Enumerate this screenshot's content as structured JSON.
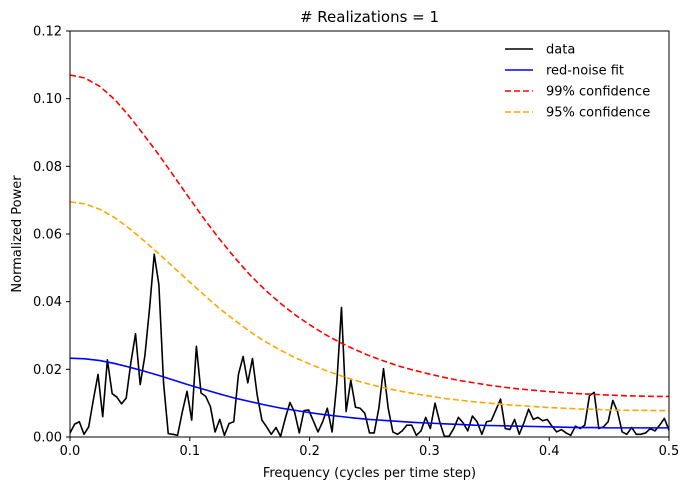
{
  "chart_data": {
    "type": "line",
    "title": "# Realizations = 1",
    "xlabel": "Frequency (cycles per time step)",
    "ylabel": "Normalized Power",
    "xlim": [
      0.0,
      0.5
    ],
    "ylim": [
      0.0,
      0.12
    ],
    "x_ticks": [
      "0.0",
      "0.1",
      "0.2",
      "0.3",
      "0.4",
      "0.5"
    ],
    "y_ticks": [
      "0.00",
      "0.02",
      "0.04",
      "0.06",
      "0.08",
      "0.10",
      "0.12"
    ],
    "x_tick_values": [
      0.0,
      0.1,
      0.2,
      0.3,
      0.4,
      0.5
    ],
    "y_tick_values": [
      0.0,
      0.02,
      0.04,
      0.06,
      0.08,
      0.1,
      0.12
    ],
    "grid": false,
    "legend_position": "top-right",
    "series": [
      {
        "name": "data",
        "color": "#000000",
        "style": "solid",
        "x": [
          0.0,
          0.0039,
          0.0078,
          0.0117,
          0.0156,
          0.0195,
          0.0234,
          0.0273,
          0.0312,
          0.0352,
          0.0391,
          0.043,
          0.0469,
          0.0508,
          0.0547,
          0.0586,
          0.0625,
          0.0664,
          0.0703,
          0.0742,
          0.0781,
          0.082,
          0.0859,
          0.0898,
          0.0938,
          0.0977,
          0.1016,
          0.1055,
          0.1094,
          0.1133,
          0.1172,
          0.1211,
          0.125,
          0.1289,
          0.1328,
          0.1367,
          0.1406,
          0.1445,
          0.1484,
          0.1523,
          0.1562,
          0.1602,
          0.1641,
          0.168,
          0.1719,
          0.1758,
          0.1797,
          0.1836,
          0.1875,
          0.1914,
          0.1953,
          0.1992,
          0.2031,
          0.207,
          0.2109,
          0.2148,
          0.2188,
          0.2227,
          0.2266,
          0.2305,
          0.2344,
          0.2383,
          0.2422,
          0.2461,
          0.25,
          0.2539,
          0.2578,
          0.2617,
          0.2656,
          0.2695,
          0.2734,
          0.2773,
          0.2812,
          0.2852,
          0.2891,
          0.293,
          0.2969,
          0.3008,
          0.3047,
          0.3086,
          0.3125,
          0.3164,
          0.3203,
          0.3242,
          0.3281,
          0.332,
          0.3359,
          0.3398,
          0.3438,
          0.3477,
          0.3516,
          0.3555,
          0.3594,
          0.3633,
          0.3672,
          0.3711,
          0.375,
          0.3789,
          0.3828,
          0.3867,
          0.3906,
          0.3945,
          0.3984,
          0.4023,
          0.4062,
          0.4102,
          0.4141,
          0.418,
          0.4219,
          0.4258,
          0.4297,
          0.4336,
          0.4375,
          0.4414,
          0.4453,
          0.4492,
          0.4531,
          0.457,
          0.4609,
          0.4648,
          0.4688,
          0.4727,
          0.4766,
          0.4805,
          0.4844,
          0.4883,
          0.4922,
          0.4961,
          0.5
        ],
        "values": [
          0.0012,
          0.0038,
          0.0045,
          0.0008,
          0.003,
          0.011,
          0.0185,
          0.006,
          0.0228,
          0.0128,
          0.0118,
          0.0098,
          0.0115,
          0.022,
          0.0305,
          0.0155,
          0.024,
          0.038,
          0.054,
          0.045,
          0.016,
          0.001,
          0.0008,
          0.0005,
          0.0075,
          0.0135,
          0.005,
          0.0268,
          0.013,
          0.012,
          0.009,
          0.0015,
          0.0052,
          0.0005,
          0.004,
          0.0045,
          0.0185,
          0.0238,
          0.016,
          0.0232,
          0.0125,
          0.005,
          0.003,
          0.0008,
          0.0028,
          0.0002,
          0.0055,
          0.0102,
          0.0073,
          0.0012,
          0.0078,
          0.008,
          0.0048,
          0.0015,
          0.0045,
          0.0085,
          0.0015,
          0.0158,
          0.0383,
          0.0075,
          0.0168,
          0.0088,
          0.0085,
          0.007,
          0.0012,
          0.0012,
          0.0085,
          0.0202,
          0.0085,
          0.0015,
          0.0008,
          0.0018,
          0.0035,
          0.0035,
          0.0005,
          0.0018,
          0.0058,
          0.0025,
          0.01,
          0.0045,
          0.0002,
          0.0002,
          0.0025,
          0.0058,
          0.0042,
          0.0018,
          0.0062,
          0.0045,
          0.0008,
          0.0045,
          0.0048,
          0.008,
          0.0112,
          0.0025,
          0.0022,
          0.0052,
          0.0008,
          0.0042,
          0.0082,
          0.0052,
          0.0058,
          0.0048,
          0.0052,
          0.0032,
          0.0015,
          0.0022,
          0.0012,
          0.0005,
          0.0032,
          0.0025,
          0.0035,
          0.0122,
          0.0132,
          0.0025,
          0.003,
          0.0045,
          0.0108,
          0.0075,
          0.0015,
          0.0008,
          0.0028,
          0.0008,
          0.0008,
          0.0012,
          0.0025,
          0.0018,
          0.0035,
          0.0055,
          0.002
        ]
      },
      {
        "name": "red-noise fit",
        "color": "#0000ff",
        "style": "solid",
        "x": [
          0.0,
          0.0125,
          0.025,
          0.0375,
          0.05,
          0.0625,
          0.075,
          0.0875,
          0.1,
          0.1125,
          0.125,
          0.1375,
          0.15,
          0.1625,
          0.175,
          0.1875,
          0.2,
          0.2125,
          0.225,
          0.2375,
          0.25,
          0.2625,
          0.275,
          0.2875,
          0.3,
          0.3125,
          0.325,
          0.3375,
          0.35,
          0.3625,
          0.375,
          0.3875,
          0.4,
          0.4125,
          0.425,
          0.4375,
          0.45,
          0.4625,
          0.475,
          0.4875,
          0.5
        ],
        "values": [
          0.0233,
          0.0231,
          0.0226,
          0.0217,
          0.0206,
          0.0194,
          0.0181,
          0.0167,
          0.0153,
          0.014,
          0.0127,
          0.0115,
          0.0105,
          0.0095,
          0.0086,
          0.0079,
          0.0072,
          0.0066,
          0.0061,
          0.0056,
          0.0052,
          0.0049,
          0.0046,
          0.0043,
          0.0041,
          0.0039,
          0.0037,
          0.0035,
          0.0034,
          0.0033,
          0.0032,
          0.0031,
          0.003,
          0.0029,
          0.0028,
          0.0028,
          0.0027,
          0.0027,
          0.0027,
          0.0027,
          0.0027
        ]
      },
      {
        "name": "99% confidence",
        "color": "#ff0000",
        "style": "dashed",
        "x": [
          0.0,
          0.0125,
          0.025,
          0.0375,
          0.05,
          0.0625,
          0.075,
          0.0875,
          0.1,
          0.1125,
          0.125,
          0.1375,
          0.15,
          0.1625,
          0.175,
          0.1875,
          0.2,
          0.2125,
          0.225,
          0.2375,
          0.25,
          0.2625,
          0.275,
          0.2875,
          0.3,
          0.3125,
          0.325,
          0.3375,
          0.35,
          0.3625,
          0.375,
          0.3875,
          0.4,
          0.4125,
          0.425,
          0.4375,
          0.45,
          0.4625,
          0.475,
          0.4875,
          0.5
        ],
        "values": [
          0.107,
          0.1061,
          0.1036,
          0.0997,
          0.0946,
          0.0889,
          0.083,
          0.0767,
          0.0704,
          0.0642,
          0.0584,
          0.053,
          0.048,
          0.0436,
          0.0397,
          0.0362,
          0.0332,
          0.0304,
          0.028,
          0.0259,
          0.024,
          0.0224,
          0.0209,
          0.0197,
          0.0186,
          0.0176,
          0.0167,
          0.016,
          0.0153,
          0.0147,
          0.0142,
          0.0138,
          0.0134,
          0.0131,
          0.0128,
          0.0126,
          0.0124,
          0.0122,
          0.0121,
          0.012,
          0.012
        ]
      },
      {
        "name": "95% confidence",
        "color": "#ffa500",
        "style": "dashed",
        "x": [
          0.0,
          0.0125,
          0.025,
          0.0375,
          0.05,
          0.0625,
          0.075,
          0.0875,
          0.1,
          0.1125,
          0.125,
          0.1375,
          0.15,
          0.1625,
          0.175,
          0.1875,
          0.2,
          0.2125,
          0.225,
          0.2375,
          0.25,
          0.2625,
          0.275,
          0.2875,
          0.3,
          0.3125,
          0.325,
          0.3375,
          0.35,
          0.3625,
          0.375,
          0.3875,
          0.4,
          0.4125,
          0.425,
          0.4375,
          0.45,
          0.4625,
          0.475,
          0.4875,
          0.5
        ],
        "values": [
          0.0695,
          0.0689,
          0.0673,
          0.0648,
          0.0615,
          0.0578,
          0.0539,
          0.0498,
          0.0458,
          0.0418,
          0.0379,
          0.0345,
          0.0312,
          0.0283,
          0.0258,
          0.0235,
          0.0216,
          0.0198,
          0.0182,
          0.0168,
          0.0156,
          0.0145,
          0.0136,
          0.0128,
          0.0121,
          0.0114,
          0.0109,
          0.0104,
          0.01,
          0.0096,
          0.0093,
          0.009,
          0.0087,
          0.0085,
          0.0083,
          0.0082,
          0.008,
          0.0079,
          0.0079,
          0.0078,
          0.0078
        ]
      }
    ]
  }
}
